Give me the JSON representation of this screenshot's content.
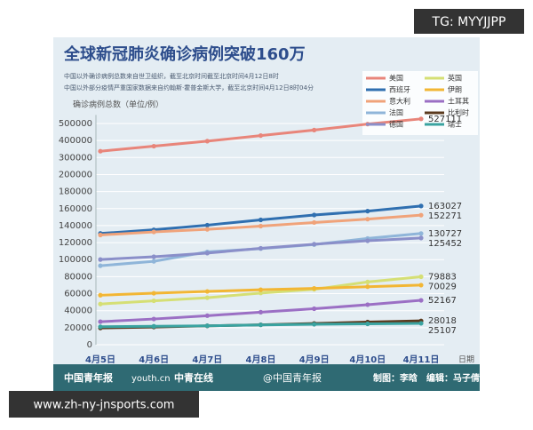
{
  "watermark": "TG: MYYJJPP",
  "site": "www.zh-ny-jnsports.com",
  "chart_data": {
    "type": "line",
    "title": "全球新冠肺炎确诊病例突破160万",
    "subtitle": [
      "中国以外确诊病例总数来自世卫组织，截至北京时间截至北京时间4月12日8时",
      "中国以外部分疫情严重国家数据来自约翰斯·霍普金斯大学，截至北京时间4月12日8时04分"
    ],
    "y_label": "确诊病例总数（单位/例）",
    "x_label": "日期",
    "categories": [
      "4月5日",
      "4月6日",
      "4月7日",
      "4月8日",
      "4月9日",
      "4月10日",
      "4月11日"
    ],
    "ylim": [
      0,
      550000
    ],
    "yticks": [
      0,
      20000,
      40000,
      60000,
      80000,
      100000,
      120000,
      140000,
      160000,
      180000,
      200000,
      300000,
      400000,
      500000
    ],
    "grid": true,
    "legend": "top-right",
    "series": [
      {
        "name": "美国",
        "color": "#e8857a",
        "values": [
          337072,
          366614,
          396223,
          429052,
          461437,
          496535,
          527111
        ]
      },
      {
        "name": "英国",
        "color": "#d5df74",
        "values": [
          47806,
          51608,
          55242,
          60733,
          65077,
          73758,
          79883
        ]
      },
      {
        "name": "西班牙",
        "color": "#2f6fb0",
        "values": [
          130759,
          135032,
          140510,
          146690,
          152446,
          157022,
          163027
        ]
      },
      {
        "name": "伊朗",
        "color": "#f2b634",
        "values": [
          58226,
          60500,
          62589,
          64586,
          66220,
          68192,
          70029
        ]
      },
      {
        "name": "意大利",
        "color": "#f0a37a",
        "values": [
          128948,
          132547,
          135586,
          139422,
          143626,
          147577,
          152271
        ]
      },
      {
        "name": "土耳其",
        "color": "#9b6fc4",
        "values": [
          27069,
          30217,
          34109,
          38226,
          42282,
          47029,
          52167
        ]
      },
      {
        "name": "法国",
        "color": "#8fb5d9",
        "values": [
          92839,
          98010,
          109069,
          112950,
          117749,
          124869,
          130727
        ]
      },
      {
        "name": "比利时",
        "color": "#5b3a1e",
        "values": [
          19691,
          20814,
          22194,
          23403,
          24983,
          26667,
          28018
        ]
      },
      {
        "name": "德国",
        "color": "#8a8fc9",
        "values": [
          100123,
          103374,
          107663,
          113296,
          118181,
          122171,
          125452
        ]
      },
      {
        "name": "瑞士",
        "color": "#3aa3a0",
        "values": [
          21100,
          21657,
          22253,
          23280,
          24051,
          24551,
          25107
        ]
      }
    ],
    "footer": {
      "credit": "制图：李晗　编辑：马子倩",
      "weibo": "@中国青年报",
      "logos": [
        "中国青年报",
        "youth.cn",
        "中青在线"
      ]
    }
  }
}
